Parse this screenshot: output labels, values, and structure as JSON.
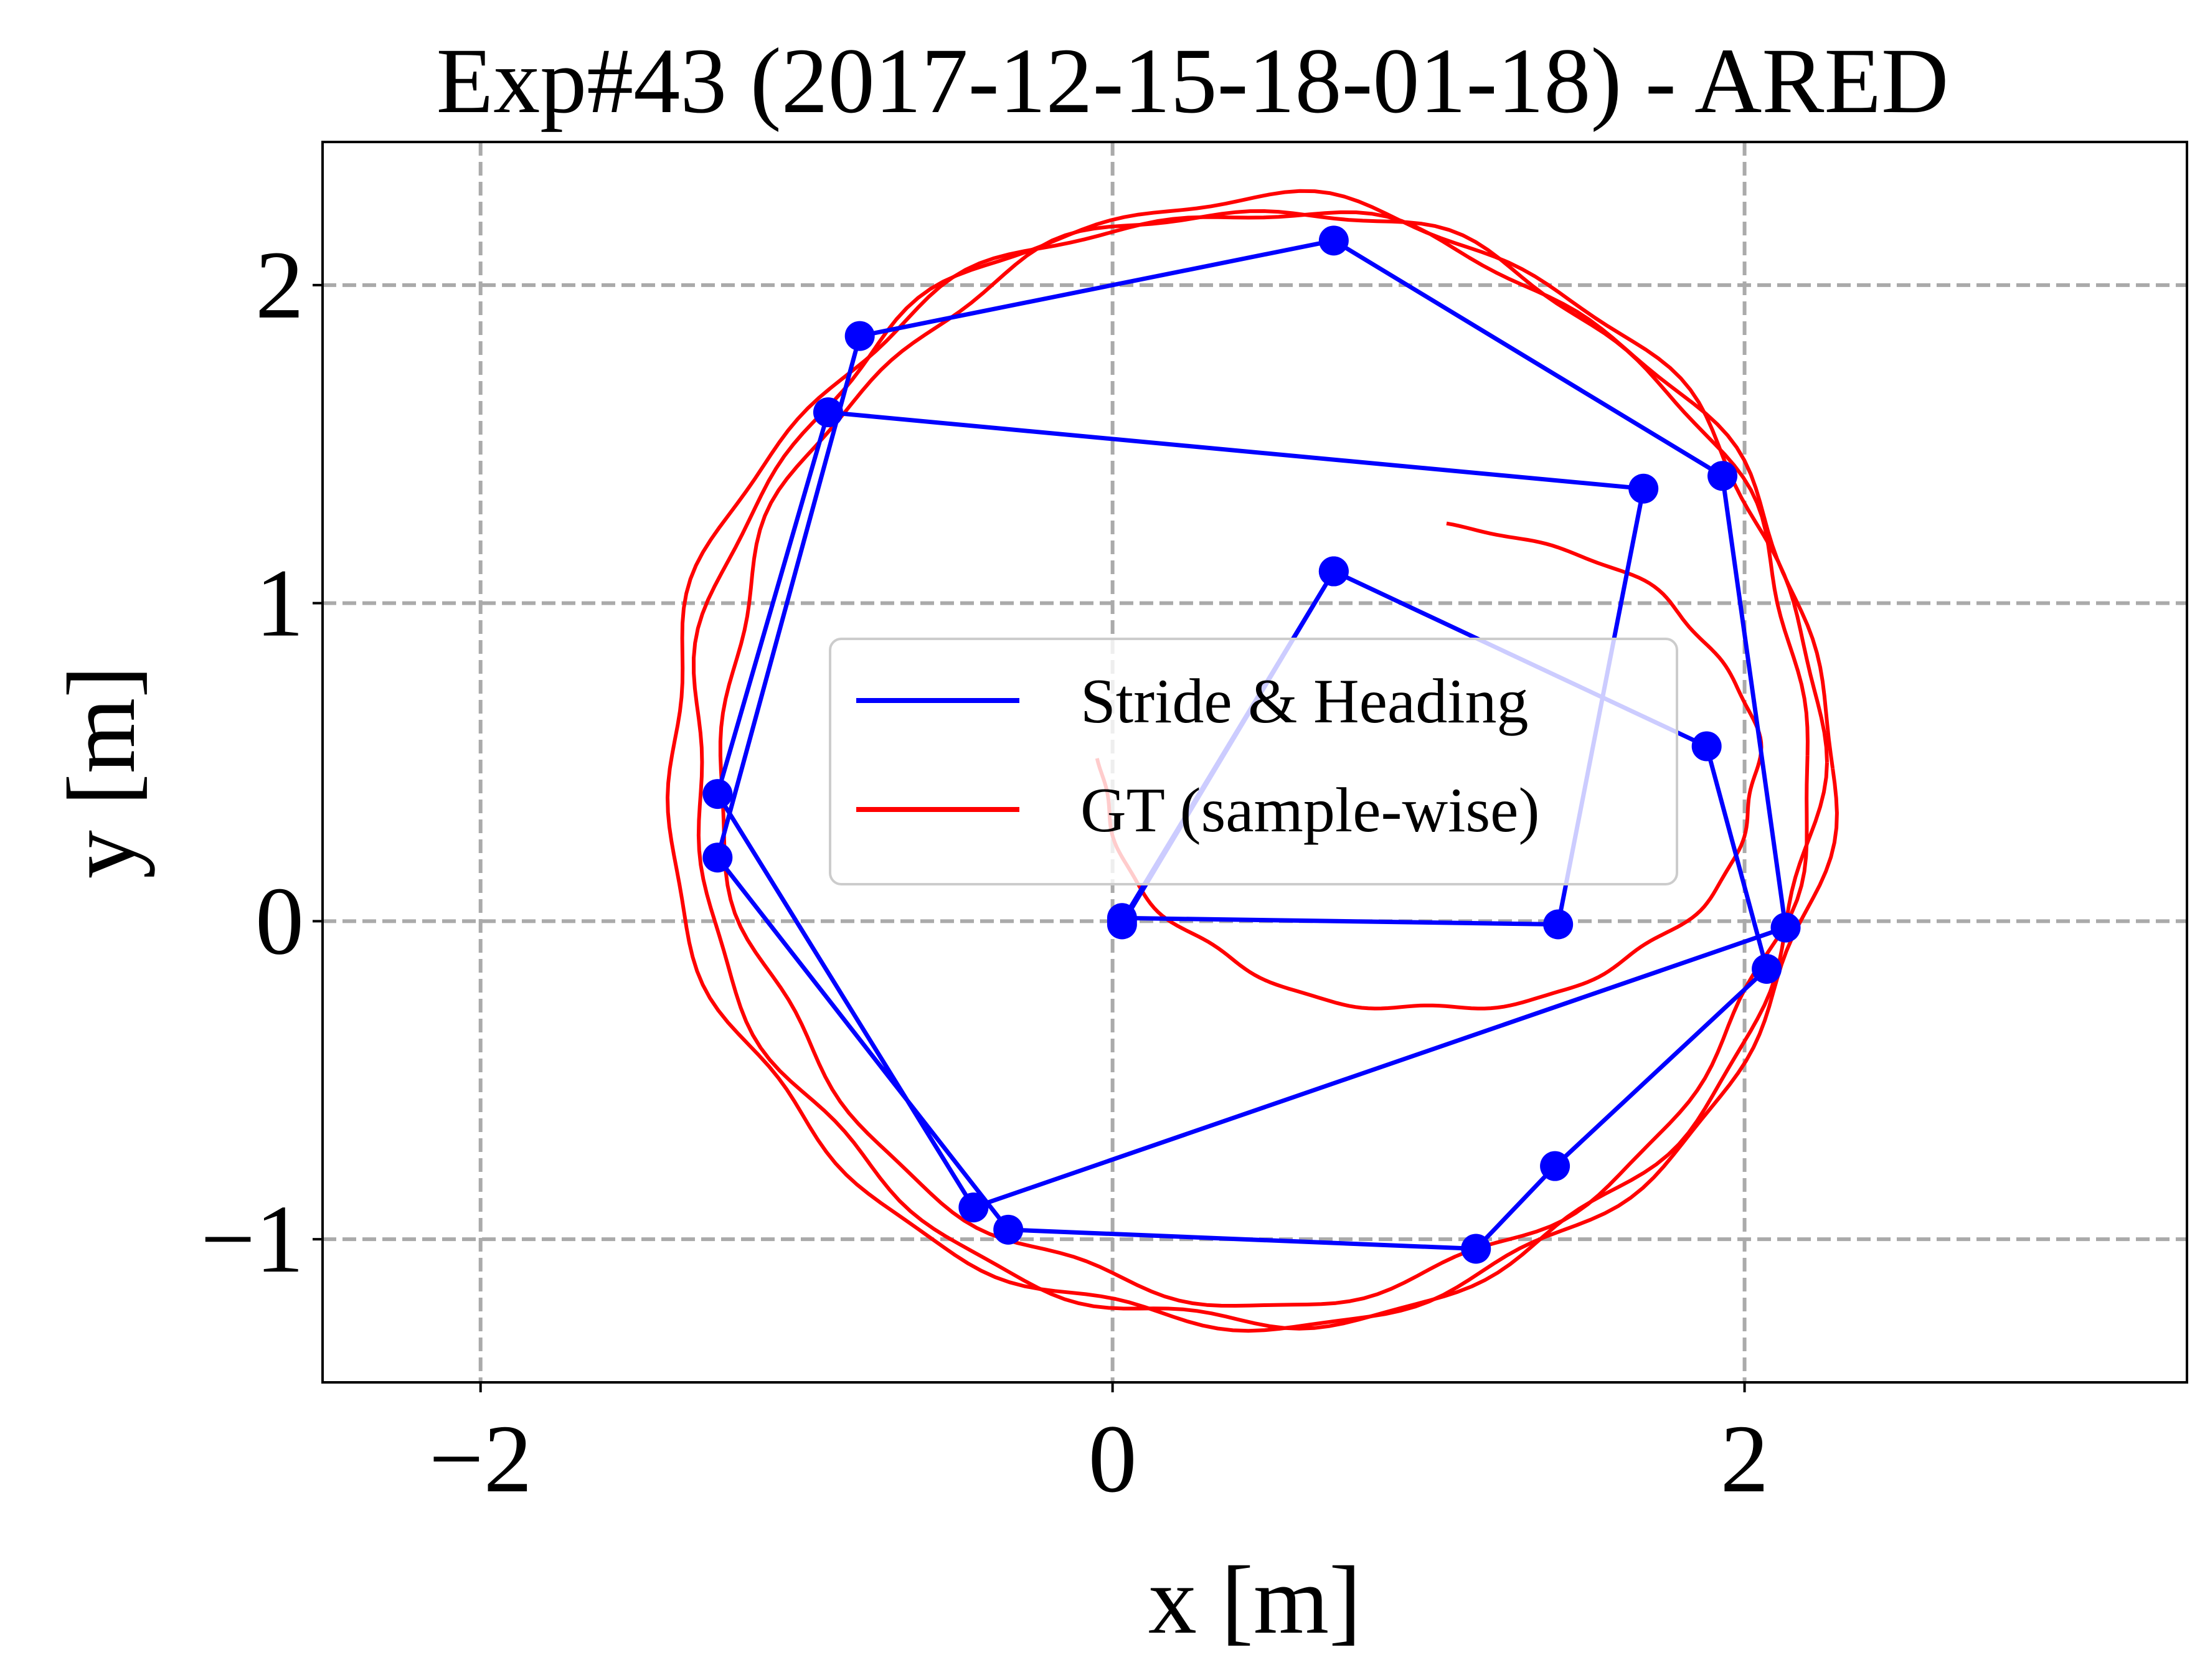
{
  "chart_data": {
    "type": "line",
    "title": "Exp#43 (2017-12-15-18-01-18) - ARED",
    "xlabel": "x [m]",
    "ylabel": "y [m]",
    "xlim": [
      -2.5,
      3.4
    ],
    "ylim": [
      -1.45,
      2.45
    ],
    "xticks": [
      -2,
      0,
      2
    ],
    "xtick_labels": [
      "−2",
      "0",
      "2"
    ],
    "yticks": [
      -1,
      0,
      1,
      2
    ],
    "ytick_labels": [
      "−1",
      "0",
      "1",
      "2"
    ],
    "grid": true,
    "legend_position": "center",
    "series": [
      {
        "name": "Stride & Heading",
        "color": "#0000ff",
        "markers": true,
        "points": [
          [
            0.03,
            0.0
          ],
          [
            0.7,
            1.1
          ],
          [
            1.88,
            0.55
          ],
          [
            2.07,
            -0.15
          ],
          [
            1.4,
            -0.77
          ],
          [
            1.15,
            -1.03
          ],
          [
            -0.33,
            -0.97
          ],
          [
            -1.25,
            0.2
          ],
          [
            -0.8,
            1.84
          ],
          [
            0.7,
            2.14
          ],
          [
            1.93,
            1.4
          ],
          [
            2.13,
            -0.02
          ],
          [
            -0.44,
            -0.9
          ],
          [
            -1.25,
            0.4
          ],
          [
            -0.9,
            1.6
          ],
          [
            1.68,
            1.36
          ],
          [
            1.41,
            -0.01
          ],
          [
            0.03,
            0.01
          ],
          [
            0.03,
            -0.01
          ],
          [
            0.7,
            1.1
          ]
        ]
      },
      {
        "name": "GT (sample-wise)",
        "color": "#ff0000",
        "markers": false,
        "loops": [
          {
            "cx": 1.0,
            "cy": 0.48,
            "rx": 1.04,
            "ry": 0.76,
            "a0": 3.1,
            "a1": 7.8
          },
          {
            "cx": 0.45,
            "cy": 0.5,
            "rx": 1.78,
            "ry": 1.77,
            "a0": 0.0,
            "a1": 6.283
          },
          {
            "cx": 0.43,
            "cy": 0.48,
            "rx": 1.84,
            "ry": 1.75,
            "a0": 0.0,
            "a1": 6.283
          },
          {
            "cx": 0.48,
            "cy": 0.52,
            "rx": 1.72,
            "ry": 1.72,
            "a0": 0.0,
            "a1": 6.283
          }
        ]
      }
    ]
  }
}
